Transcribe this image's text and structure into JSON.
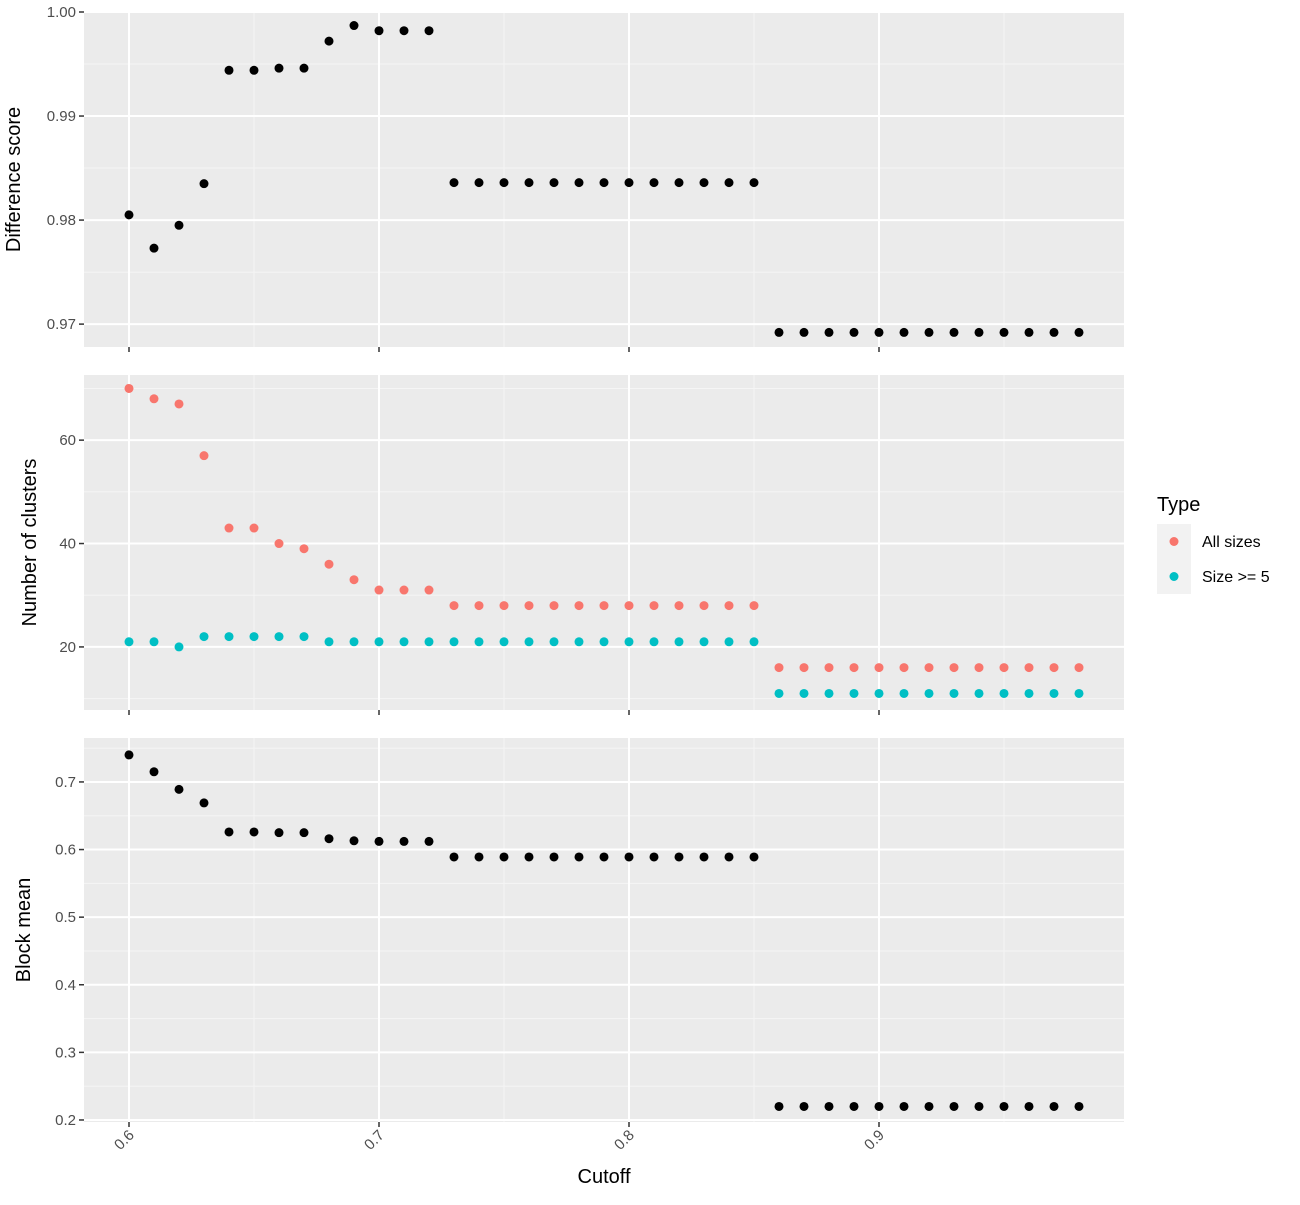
{
  "chart_data": {
    "type": "scatter",
    "xlabel": "Cutoff",
    "xlim": [
      0.582,
      0.998
    ],
    "x_ticks": [
      "0.6",
      "0.7",
      "0.8",
      "0.9"
    ],
    "x_tick_values": [
      0.6,
      0.7,
      0.8,
      0.9
    ],
    "x": [
      0.6,
      0.61,
      0.62,
      0.63,
      0.64,
      0.65,
      0.66,
      0.67,
      0.68,
      0.69,
      0.7,
      0.71,
      0.72,
      0.73,
      0.74,
      0.75,
      0.76,
      0.77,
      0.78,
      0.79,
      0.8,
      0.81,
      0.82,
      0.83,
      0.84,
      0.85,
      0.86,
      0.87,
      0.88,
      0.89,
      0.9,
      0.91,
      0.92,
      0.93,
      0.94,
      0.95,
      0.96,
      0.97,
      0.98
    ],
    "panels": [
      {
        "ylabel": "Difference score",
        "ylim": [
          0.9678,
          1.0
        ],
        "y_ticks": [
          "0.97",
          "0.98",
          "0.99",
          "1.00"
        ],
        "y_tick_values": [
          0.97,
          0.98,
          0.99,
          1.0
        ],
        "series": [
          {
            "values": [
              0.9805,
              0.9773,
              0.9795,
              0.9835,
              0.9944,
              0.9944,
              0.9946,
              0.9946,
              0.9972,
              0.9987,
              0.9982,
              0.9982,
              0.9982,
              0.9836,
              0.9836,
              0.9836,
              0.9836,
              0.9836,
              0.9836,
              0.9836,
              0.9836,
              0.9836,
              0.9836,
              0.9836,
              0.9836,
              0.9836,
              0.9692,
              0.9692,
              0.9692,
              0.9692,
              0.9692,
              0.9692,
              0.9692,
              0.9692,
              0.9692,
              0.9692,
              0.9692,
              0.9692,
              0.9692
            ],
            "color": "#000000"
          }
        ]
      },
      {
        "ylabel": "Number of clusters",
        "ylim": [
          7.8,
          72.6
        ],
        "y_ticks": [
          "20",
          "40",
          "60"
        ],
        "y_tick_values": [
          20,
          40,
          60
        ],
        "series": [
          {
            "name": "All sizes",
            "values": [
              70,
              68,
              67,
              57,
              43,
              43,
              40,
              39,
              36,
              33,
              31,
              31,
              31,
              28,
              28,
              28,
              28,
              28,
              28,
              28,
              28,
              28,
              28,
              28,
              28,
              28,
              16,
              16,
              16,
              16,
              16,
              16,
              16,
              16,
              16,
              16,
              16,
              16,
              16
            ],
            "color": "#F8766D"
          },
          {
            "name": "Size >= 5",
            "values": [
              21,
              21,
              20,
              22,
              22,
              22,
              22,
              22,
              21,
              21,
              21,
              21,
              21,
              21,
              21,
              21,
              21,
              21,
              21,
              21,
              21,
              21,
              21,
              21,
              21,
              21,
              11,
              11,
              11,
              11,
              11,
              11,
              11,
              11,
              11,
              11,
              11,
              11,
              11
            ],
            "color": "#00BFC4"
          }
        ]
      },
      {
        "ylabel": "Block mean",
        "ylim": [
          0.197,
          0.765
        ],
        "y_ticks": [
          "0.2",
          "0.3",
          "0.4",
          "0.5",
          "0.6",
          "0.7"
        ],
        "y_tick_values": [
          0.2,
          0.3,
          0.4,
          0.5,
          0.6,
          0.7
        ],
        "series": [
          {
            "values": [
              0.74,
              0.715,
              0.689,
              0.669,
              0.626,
              0.626,
              0.625,
              0.625,
              0.616,
              0.613,
              0.612,
              0.612,
              0.612,
              0.589,
              0.589,
              0.589,
              0.589,
              0.589,
              0.589,
              0.589,
              0.589,
              0.589,
              0.589,
              0.589,
              0.589,
              0.589,
              0.22,
              0.22,
              0.22,
              0.22,
              0.22,
              0.22,
              0.22,
              0.22,
              0.22,
              0.22,
              0.22,
              0.22,
              0.22
            ],
            "color": "#000000"
          }
        ]
      }
    ],
    "grid": true,
    "legend": {
      "title": "Type",
      "placement": "right",
      "entries": [
        "All sizes",
        "Size >= 5"
      ]
    }
  }
}
